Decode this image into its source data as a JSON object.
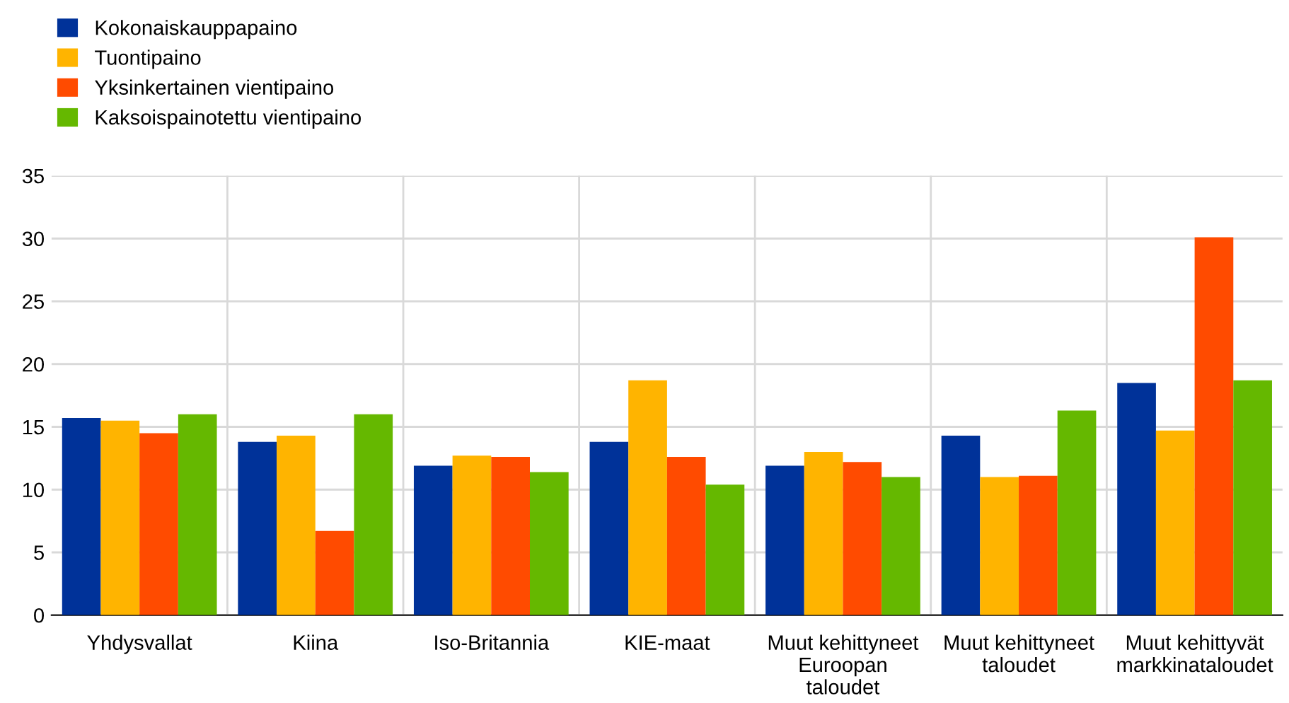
{
  "chart_data": {
    "type": "bar",
    "categories": [
      "Yhdysvallat",
      "Kiina",
      "Iso-Britannia",
      "KIE-maat",
      "Muut kehittyneet\nEuroopan\ntaloudet",
      "Muut kehittyneet\ntaloudet",
      "Muut kehittyvät\nmarkkinataloudet"
    ],
    "series": [
      {
        "name": "Kokonaiskauppapaino",
        "color": "#003299",
        "values": [
          15.7,
          13.8,
          11.9,
          13.8,
          11.9,
          14.3,
          18.5
        ]
      },
      {
        "name": "Tuontipaino",
        "color": "#ffb400",
        "values": [
          15.5,
          14.3,
          12.7,
          18.7,
          13.0,
          11.0,
          14.7
        ]
      },
      {
        "name": "Yksinkertainen vientipaino",
        "color": "#ff4b00",
        "values": [
          14.5,
          6.7,
          12.6,
          12.6,
          12.2,
          11.1,
          30.1
        ]
      },
      {
        "name": "Kaksoispainotettu vientipaino",
        "color": "#65b800",
        "values": [
          16.0,
          16.0,
          11.4,
          10.4,
          11.0,
          16.3,
          18.7
        ]
      }
    ],
    "ylim": [
      0,
      35
    ],
    "yticks": [
      0,
      5,
      10,
      15,
      20,
      25,
      30,
      35
    ],
    "grid": true,
    "legend": "top left"
  }
}
